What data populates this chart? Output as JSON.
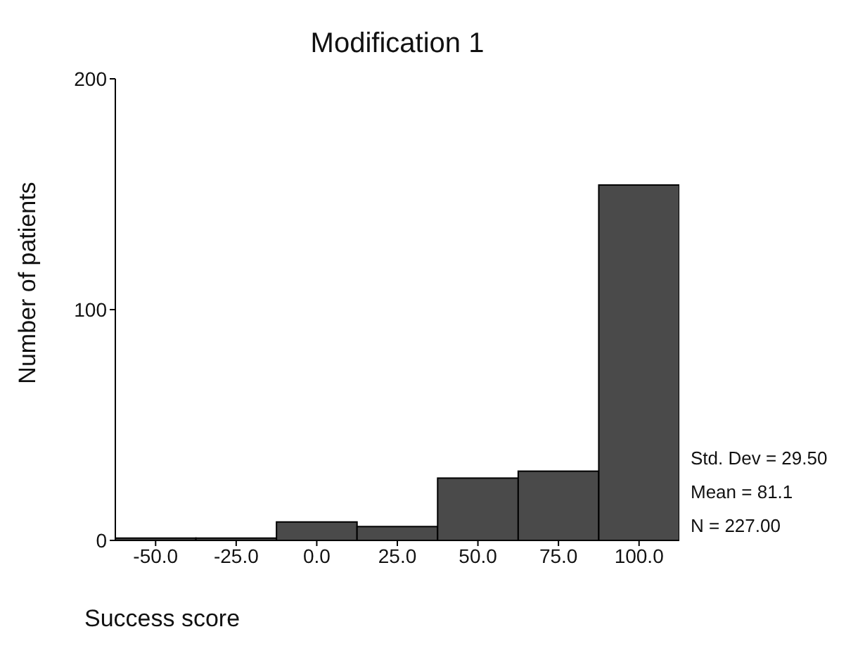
{
  "chart_data": {
    "type": "histogram",
    "title": "Modification 1",
    "xlabel": "Success score",
    "ylabel": "Number of patients",
    "bins": [
      -62.5,
      -37.5,
      -12.5,
      12.5,
      37.5,
      62.5,
      87.5,
      112.5
    ],
    "values": [
      1,
      1,
      8,
      6,
      27,
      30,
      154
    ],
    "color": "#4a4a4a",
    "xlim": [
      -62.5,
      112.5
    ],
    "xticks": [
      {
        "value": -50,
        "label": "-50.0"
      },
      {
        "value": -25,
        "label": "-25.0"
      },
      {
        "value": 0,
        "label": "0.0"
      },
      {
        "value": 25,
        "label": "25.0"
      },
      {
        "value": 50,
        "label": "50.0"
      },
      {
        "value": 75,
        "label": "75.0"
      },
      {
        "value": 100,
        "label": "100.0"
      }
    ],
    "ylim": [
      0,
      200
    ],
    "yticks": [
      0,
      100,
      200
    ],
    "grid": false,
    "annotations": [
      "Std. Dev = 29.50",
      "Mean = 81.1",
      "N = 227.00"
    ]
  }
}
